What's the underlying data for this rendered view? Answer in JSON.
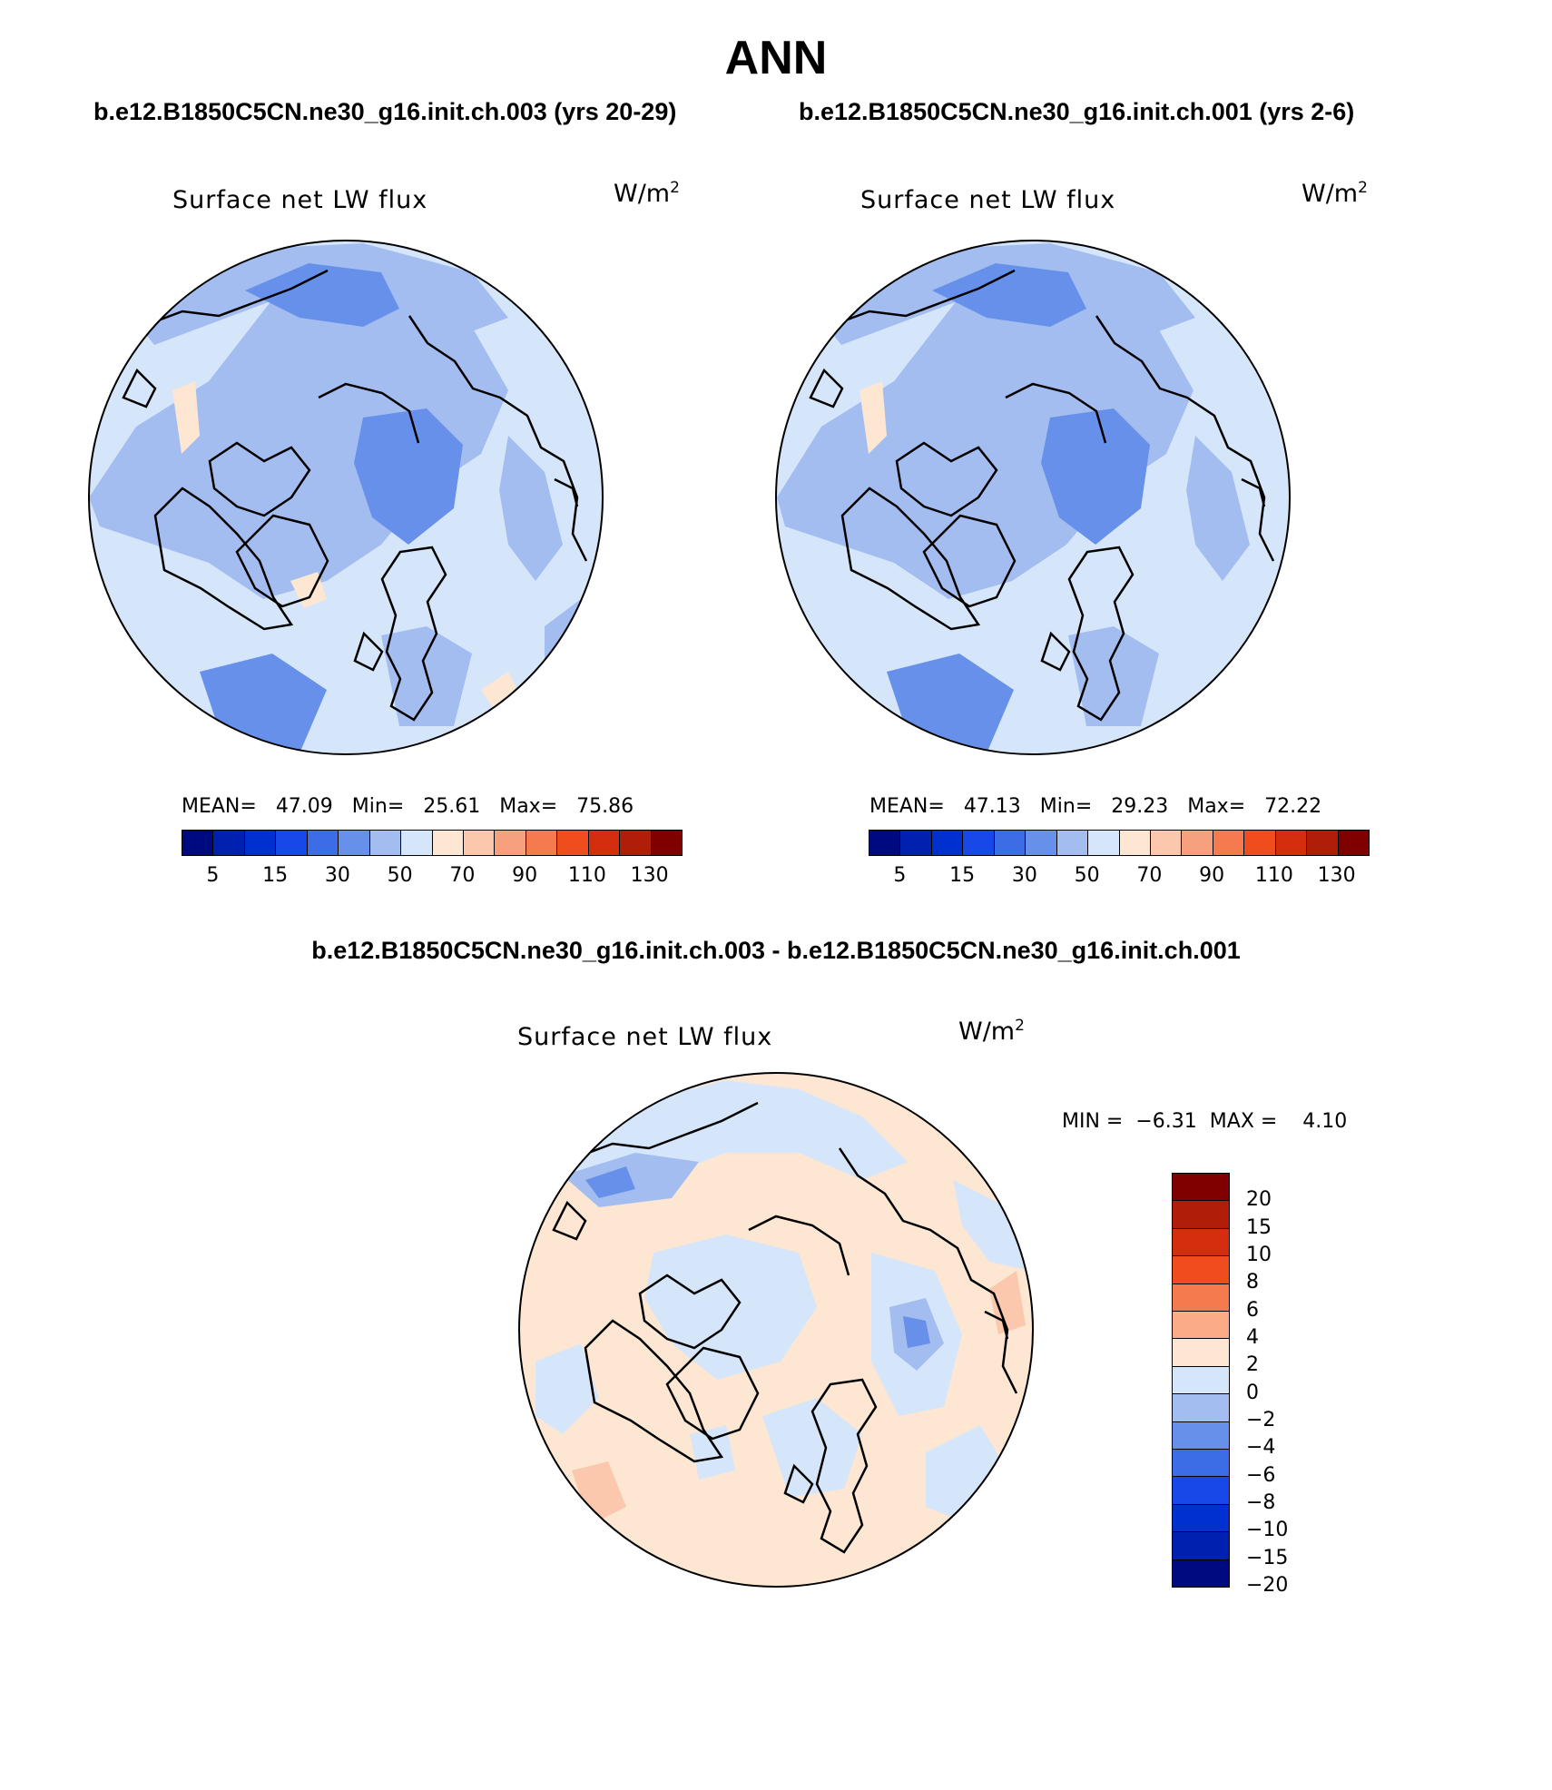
{
  "season": "ANN",
  "case_left": "b.e12.B1850C5CN.ne30_g16.init.ch.003 (yrs 20-29)",
  "case_right": "b.e12.B1850C5CN.ne30_g16.init.ch.001 (yrs 2-6)",
  "diff_title": "b.e12.B1850C5CN.ne30_g16.init.ch.003 - b.e12.B1850C5CN.ne30_g16.init.ch.001",
  "variable": "Surface net LW flux",
  "units_base": "W/m",
  "units_exp": "2",
  "panel_left": {
    "mean_label": "MEAN=",
    "mean": "47.09",
    "min_label": "Min=",
    "min": "25.61",
    "max_label": "Max=",
    "max": "75.86"
  },
  "panel_right": {
    "mean_label": "MEAN=",
    "mean": "47.13",
    "min_label": "Min=",
    "min": "29.23",
    "max_label": "Max=",
    "max": "72.22"
  },
  "panel_diff": {
    "min_label": "MIN =",
    "min": "−6.31",
    "max_label": "MAX =",
    "max": "4.10"
  },
  "colorbar_abs": {
    "colors": [
      "#000a80",
      "#0020b0",
      "#0030d0",
      "#1848e8",
      "#3c6ce6",
      "#6690ea",
      "#a4bdf0",
      "#d6e6fa",
      "#fde6d2",
      "#fbc8ad",
      "#f7a07e",
      "#f57a4e",
      "#f04d1e",
      "#d42e0e",
      "#b01d08",
      "#800000"
    ],
    "labels": [
      "5",
      "15",
      "30",
      "50",
      "70",
      "90",
      "110",
      "130"
    ]
  },
  "colorbar_diff": {
    "colors": [
      "#800000",
      "#b01d08",
      "#d42e0e",
      "#f04d1e",
      "#f57a4e",
      "#fbab86",
      "#fde6d2",
      "#d6e6fa",
      "#a4bdf0",
      "#6690ea",
      "#3c6ce6",
      "#1848e8",
      "#0030d0",
      "#0020b0",
      "#000a80"
    ],
    "labels": [
      "20",
      "15",
      "10",
      "8",
      "6",
      "4",
      "2",
      "0",
      "−2",
      "−4",
      "−6",
      "−8",
      "−10",
      "−15",
      "−20"
    ]
  }
}
